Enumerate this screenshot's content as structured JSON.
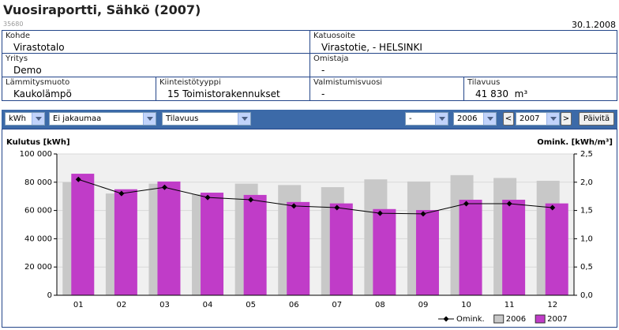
{
  "header": {
    "title": "Vuosiraportti, Sähkö (2007)",
    "id": "35680",
    "date": "30.1.2008"
  },
  "info": {
    "kohde": {
      "label": "Kohde",
      "value": "Virastotalo"
    },
    "katuosoite": {
      "label": "Katuosoite",
      "value": "Virastotie, - HELSINKI"
    },
    "yritys": {
      "label": "Yritys",
      "value": "Demo"
    },
    "omistaja": {
      "label": "Omistaja",
      "value": "-"
    },
    "lammitysmuoto": {
      "label": "Lämmitysmuoto",
      "value": "Kaukolämpö"
    },
    "kiinteistotyyppi": {
      "label": "Kiinteistötyyppi",
      "value": "15 Toimistorakennukset"
    },
    "valmistumisvuosi": {
      "label": "Valmistumisvuosi",
      "value": "-"
    },
    "tilavuus": {
      "label": "Tilavuus",
      "value": "41 830",
      "unit": "m³"
    }
  },
  "toolbar": {
    "unit": "kWh",
    "distribution": "Ei jakaumaa",
    "basis": "Tilavuus",
    "filter": "-",
    "year1": "2006",
    "prev": "<",
    "year2": "2007",
    "next": ">",
    "refresh": "Päivitä"
  },
  "chart_data": {
    "type": "bar",
    "y_label": "Kulutus [kWh]",
    "y2_label": "Omink. [kWh/m³]",
    "categories": [
      "01",
      "02",
      "03",
      "04",
      "05",
      "06",
      "07",
      "08",
      "09",
      "10",
      "11",
      "12"
    ],
    "series": [
      {
        "name": "Omink.",
        "color": "#000000",
        "type": "line",
        "axis": "y2",
        "values": [
          2.05,
          1.8,
          1.91,
          1.73,
          1.69,
          1.58,
          1.55,
          1.45,
          1.44,
          1.62,
          1.62,
          1.55
        ]
      },
      {
        "name": "2006",
        "color": "#c8c8c8",
        "values": [
          80000,
          72000,
          79000,
          71500,
          79000,
          78000,
          76500,
          82000,
          80500,
          85000,
          83000,
          81000
        ]
      },
      {
        "name": "2007",
        "color": "#c03cc8",
        "values": [
          86000,
          75000,
          80500,
          72600,
          71000,
          66000,
          65000,
          61000,
          60300,
          67600,
          67600,
          65000
        ]
      }
    ],
    "ylim": [
      0,
      100000
    ],
    "yticks": [
      0,
      {
        "value": 20000,
        "label": "20 000"
      },
      {
        "value": 40000,
        "label": "40 000"
      },
      {
        "value": 60000,
        "label": "60 000"
      },
      {
        "value": 80000,
        "label": "80 000"
      },
      {
        "value": 100000,
        "label": "100 000"
      }
    ],
    "y2lim": [
      0,
      2.5
    ],
    "y2ticks": [
      {
        "value": 0,
        "label": "0,0"
      },
      {
        "value": 0.5,
        "label": "0,5"
      },
      {
        "value": 1,
        "label": "1,0"
      },
      {
        "value": 1.5,
        "label": "1,5"
      },
      {
        "value": 2,
        "label": "2,0"
      },
      {
        "value": 2.5,
        "label": "2,5"
      }
    ],
    "grid": true
  }
}
